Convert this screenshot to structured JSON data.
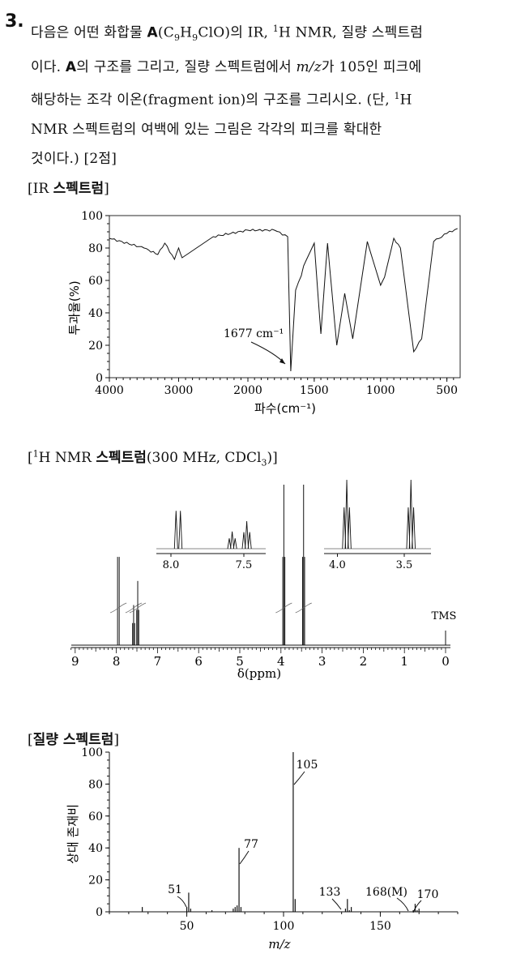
{
  "question": {
    "number": "3.",
    "line1_a": "다음은 어떤 화합물 ",
    "compound": "A",
    "line1_b": "(C",
    "sub1": "9",
    "line1_c": "H",
    "sub2": "9",
    "line1_d": "ClO)의 IR, ",
    "sup1": "1",
    "line1_e": "H NMR, 질량 스펙트럼",
    "line2_a": "이다. ",
    "line2_b": "의 구조를 그리고, 질량 스펙트럼에서 ",
    "mz": "m/z",
    "line2_c": "가 105인 피크에",
    "line3_a": "해당하는 조각 이온(fragment ion)의 구조를 그리시오. (단, ",
    "sup2": "1",
    "line3_b": "H",
    "line4": "NMR 스펙트럼의 여백에 있는 그림은 각각의 피크를 확대한",
    "line5": "것이다.) [2점]"
  },
  "ir": {
    "title_open": "[IR ",
    "title_bold": "스펙트럼",
    "title_close": "]",
    "ylabel": "투과율(%)",
    "xlabel": "파수(cm⁻¹)",
    "annotation": "1677 cm⁻¹",
    "yticks": [
      "0",
      "20",
      "40",
      "60",
      "80",
      "100"
    ],
    "xticks": [
      "4000",
      "3000",
      "2000",
      "1500",
      "1000",
      "500"
    ]
  },
  "nmr": {
    "title_open": "[",
    "title_sup": "1",
    "title_mid": "H NMR ",
    "title_bold": "스펙트럼",
    "title_rest": "(300 MHz, CDCl",
    "title_sub": "3",
    "title_close": ")]",
    "xticks": [
      "9",
      "8",
      "7",
      "6",
      "5",
      "4",
      "3",
      "2",
      "1",
      "0"
    ],
    "xlabel": "δ(ppm)",
    "tms": "TMS",
    "inset1_ticks": [
      "8.0",
      "7.5"
    ],
    "inset2_ticks": [
      "4.0",
      "3.5"
    ]
  },
  "ms": {
    "title_open": "[",
    "title_bold": "질량 스펙트럼",
    "title_close": "]",
    "ylabel": "상대 존재비",
    "xlabel": "m/z",
    "yticks": [
      "0",
      "20",
      "40",
      "60",
      "80",
      "100"
    ],
    "xticks": [
      "50",
      "100",
      "150"
    ],
    "labels": {
      "p51": "51",
      "p77": "77",
      "p105": "105",
      "p133": "133",
      "p168": "168(M)",
      "p170": "170"
    }
  },
  "chart_data": [
    {
      "type": "line",
      "title": "IR 스펙트럼",
      "xlabel": "파수(cm⁻¹)",
      "ylabel": "투과율(%)",
      "xlim": [
        4000,
        400
      ],
      "ylim": [
        0,
        100
      ],
      "x": [
        4000,
        3500,
        3300,
        3200,
        3060,
        3000,
        2950,
        2500,
        2000,
        1800,
        1700,
        1677,
        1640,
        1597,
        1580,
        1500,
        1450,
        1400,
        1330,
        1270,
        1210,
        1100,
        1000,
        970,
        900,
        850,
        750,
        690,
        600,
        500,
        420
      ],
      "y": [
        86,
        80,
        76,
        83,
        73,
        80,
        74,
        87,
        91,
        91,
        87,
        4,
        54,
        63,
        69,
        83,
        27,
        83,
        20,
        52,
        24,
        84,
        57,
        62,
        86,
        80,
        16,
        24,
        84,
        89,
        92
      ],
      "annotations": [
        {
          "x": 1677,
          "text": "1677 cm⁻¹"
        }
      ]
    },
    {
      "type": "line",
      "title": "¹H NMR 스펙트럼(300 MHz, CDCl₃)",
      "xlabel": "δ(ppm)",
      "xlim": [
        9.2,
        -0.1
      ],
      "peaks": [
        {
          "ppm": 7.95,
          "mult": "d",
          "rel_height": 0.55
        },
        {
          "ppm": 7.58,
          "mult": "t",
          "rel_height": 0.25
        },
        {
          "ppm": 7.48,
          "mult": "t",
          "rel_height": 0.4
        },
        {
          "ppm": 3.93,
          "mult": "t",
          "rel_height": 1.0
        },
        {
          "ppm": 3.45,
          "mult": "t",
          "rel_height": 1.0
        },
        {
          "ppm": 0.0,
          "mult": "s",
          "label": "TMS",
          "rel_height": 0.06
        }
      ]
    },
    {
      "type": "bar",
      "title": "질량 스펙트럼",
      "xlabel": "m/z",
      "ylabel": "상대 존재비",
      "xlim": [
        10,
        190
      ],
      "ylim": [
        0,
        100
      ],
      "x": [
        27,
        50,
        51,
        52,
        63,
        74,
        75,
        76,
        77,
        78,
        105,
        106,
        132,
        133,
        134,
        135,
        167,
        168,
        169,
        170
      ],
      "values": [
        3,
        3,
        12,
        2,
        1,
        2,
        3,
        4,
        40,
        3,
        100,
        8,
        2,
        8,
        1,
        3,
        1,
        5,
        1,
        2
      ]
    }
  ]
}
